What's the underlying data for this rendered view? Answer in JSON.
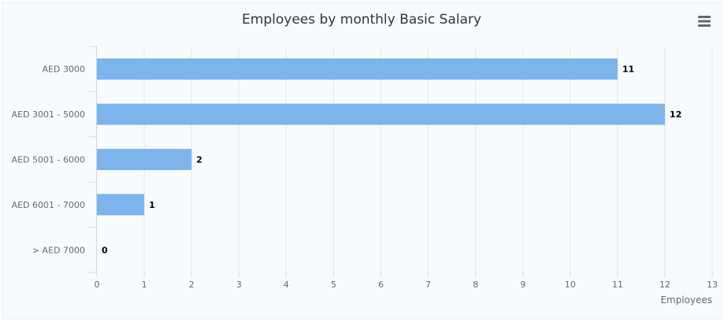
{
  "chart_data": {
    "type": "bar",
    "orientation": "horizontal",
    "title": "Employees by monthly Basic Salary",
    "xlabel": "Employees",
    "ylabel": "",
    "categories": [
      "AED 3000",
      "AED 3001 - 5000",
      "AED 5001 - 6000",
      "AED 6001 - 7000",
      "> AED 7000"
    ],
    "values": [
      11,
      12,
      2,
      1,
      0
    ],
    "data_labels": [
      "11",
      "12",
      "2",
      "1",
      "0"
    ],
    "xlim": [
      0,
      13
    ],
    "ticks": [
      "0",
      "1",
      "2",
      "3",
      "4",
      "5",
      "6",
      "7",
      "8",
      "9",
      "10",
      "11",
      "12",
      "13"
    ],
    "grid": true,
    "legend": "none",
    "bar_color": "#7cb5ec"
  },
  "menu": {
    "icon": "hamburger-menu-icon"
  }
}
